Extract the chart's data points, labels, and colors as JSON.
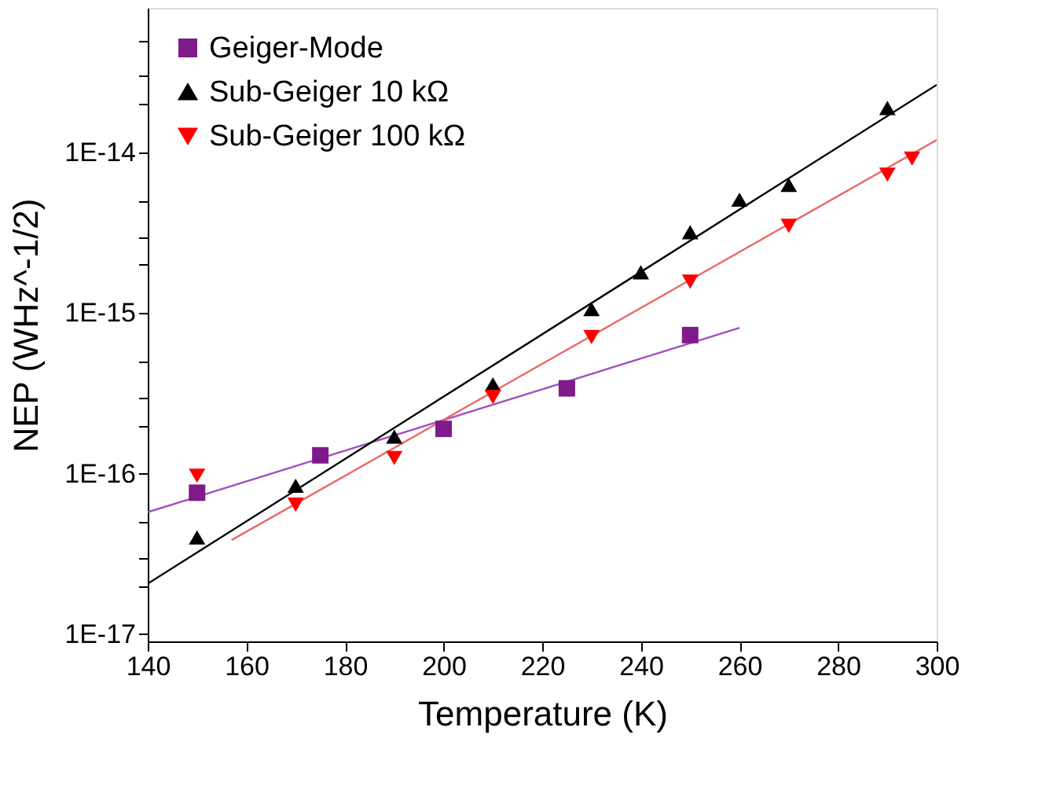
{
  "chart_data": {
    "type": "scatter",
    "xlabel": "Temperature (K)",
    "ylabel": "NEP (WHz^-1/2)",
    "log": true,
    "legend": "top left",
    "grid": false,
    "xlim": [
      140,
      300
    ],
    "xticks": [
      140,
      160,
      180,
      200,
      220,
      240,
      260,
      280,
      300
    ],
    "ylim": [
      9e-18,
      8e-14
    ],
    "yticks": [
      {
        "value": 1e-17,
        "label": "1E-17"
      },
      {
        "value": 2e-17,
        "label": null
      },
      {
        "value": 3e-17,
        "label": null
      },
      {
        "value": 5e-17,
        "label": null
      },
      {
        "value": 1e-16,
        "label": "1E-16"
      },
      {
        "value": 2e-16,
        "label": null
      },
      {
        "value": 3e-16,
        "label": null
      },
      {
        "value": 5e-16,
        "label": null
      },
      {
        "value": 1e-15,
        "label": "1E-15"
      },
      {
        "value": 2e-15,
        "label": null
      },
      {
        "value": 3e-15,
        "label": null
      },
      {
        "value": 5e-15,
        "label": null
      },
      {
        "value": 1e-14,
        "label": "1E-14"
      },
      {
        "value": 2e-14,
        "label": null
      },
      {
        "value": 3e-14,
        "label": null
      },
      {
        "value": 5e-14,
        "label": null
      }
    ],
    "series": [
      {
        "name": "Geiger-Mode",
        "marker": "square",
        "color": "#7f1a8a",
        "x": [
          150,
          175,
          200,
          225,
          250
        ],
        "values": [
          7.6e-17,
          1.3e-16,
          1.9e-16,
          3.4e-16,
          7.3e-16
        ]
      },
      {
        "name": "Sub-Geiger 10 kΩ",
        "marker": "triangle",
        "color": "#000000",
        "x": [
          150,
          170,
          190,
          210,
          230,
          240,
          250,
          260,
          270,
          290
        ],
        "values": [
          4e-17,
          8.4e-17,
          1.7e-16,
          3.6e-16,
          1.06e-15,
          1.8e-15,
          3.2e-15,
          5.1e-15,
          6.3e-15,
          1.9e-14
        ]
      },
      {
        "name": "Sub-Geiger 100 kΩ",
        "marker": "triangle-down",
        "color": "#ff0000",
        "x": [
          150,
          170,
          190,
          210,
          230,
          250,
          270,
          290,
          295
        ],
        "values": [
          9.7e-17,
          6.4e-17,
          1.25e-16,
          3e-16,
          7.1e-16,
          1.57e-15,
          3.5e-15,
          7.3e-15,
          9.2e-15
        ]
      },
      {
        "type": "line",
        "color": "#a050c0",
        "x": [
          140,
          260
        ],
        "values": [
          5.75e-17,
          8.1e-16
        ]
      },
      {
        "type": "line",
        "color": "#000000",
        "x": [
          140,
          300
        ],
        "values": [
          2.06e-17,
          2.65e-14
        ]
      },
      {
        "type": "line",
        "color": "#e86a6a",
        "x": [
          157,
          300
        ],
        "values": [
          3.85e-17,
          1.2e-14
        ]
      }
    ]
  }
}
